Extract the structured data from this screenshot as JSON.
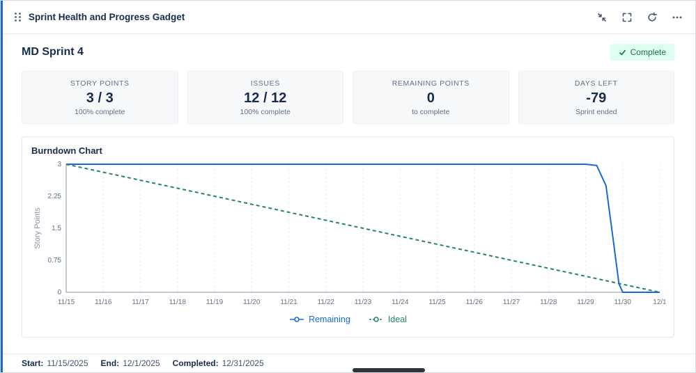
{
  "colors": {
    "accent_blue": "#1868DB",
    "ideal_green": "#22846C",
    "badge_bg": "#DCFFF1",
    "badge_text": "#216E4E",
    "grid": "#EBECF0",
    "axis": "#8590A2",
    "footer_value": "#44546F"
  },
  "header": {
    "title": "Sprint Health and Progress Gadget",
    "actions": [
      "minimize",
      "fullscreen",
      "refresh",
      "more"
    ]
  },
  "sprint": {
    "name": "MD Sprint 4",
    "status": "Complete"
  },
  "stats": [
    {
      "label": "STORY POINTS",
      "value": "3 / 3",
      "sub": "100% complete"
    },
    {
      "label": "ISSUES",
      "value": "12 / 12",
      "sub": "100% complete"
    },
    {
      "label": "REMAINING POINTS",
      "value": "0",
      "sub": "to complete"
    },
    {
      "label": "DAYS LEFT",
      "value": "-79",
      "sub": "Sprint ended"
    }
  ],
  "chart": {
    "title": "Burndown Chart"
  },
  "chart_data": {
    "type": "line",
    "title": "Burndown Chart",
    "xlabel": "",
    "ylabel": "Story Points",
    "ylim": [
      0,
      3
    ],
    "y_ticks": [
      0,
      0.75,
      1.5,
      2.25,
      3
    ],
    "grid": "vertical-dashed",
    "legend_position": "bottom",
    "categories": [
      "11/15",
      "11/16",
      "11/17",
      "11/18",
      "11/19",
      "11/20",
      "11/21",
      "11/22",
      "11/23",
      "11/24",
      "11/25",
      "11/26",
      "11/27",
      "11/28",
      "11/29",
      "11/30",
      "12/1"
    ],
    "series": [
      {
        "name": "Remaining",
        "color": "#1868DB",
        "style": "solid",
        "values": [
          3,
          3,
          3,
          3,
          3,
          3,
          3,
          3,
          3,
          3,
          3,
          3,
          3,
          3,
          3,
          0,
          0
        ],
        "points": [
          [
            0,
            3
          ],
          [
            14,
            3
          ],
          [
            14.3,
            2.97
          ],
          [
            14.55,
            2.5
          ],
          [
            14.75,
            1.2
          ],
          [
            14.9,
            0.2
          ],
          [
            15,
            0
          ],
          [
            16,
            0
          ]
        ]
      },
      {
        "name": "Ideal",
        "color": "#22846C",
        "style": "dashed",
        "values": [
          3,
          2.81,
          2.63,
          2.44,
          2.25,
          2.06,
          1.88,
          1.69,
          1.5,
          1.31,
          1.13,
          0.94,
          0.75,
          0.56,
          0.38,
          0.19,
          0
        ],
        "points": [
          [
            0,
            3
          ],
          [
            16,
            0
          ]
        ]
      }
    ]
  },
  "footer": {
    "start_label": "Start:",
    "start_value": "11/15/2025",
    "end_label": "End:",
    "end_value": "12/1/2025",
    "completed_label": "Completed:",
    "completed_value": "12/31/2025"
  }
}
